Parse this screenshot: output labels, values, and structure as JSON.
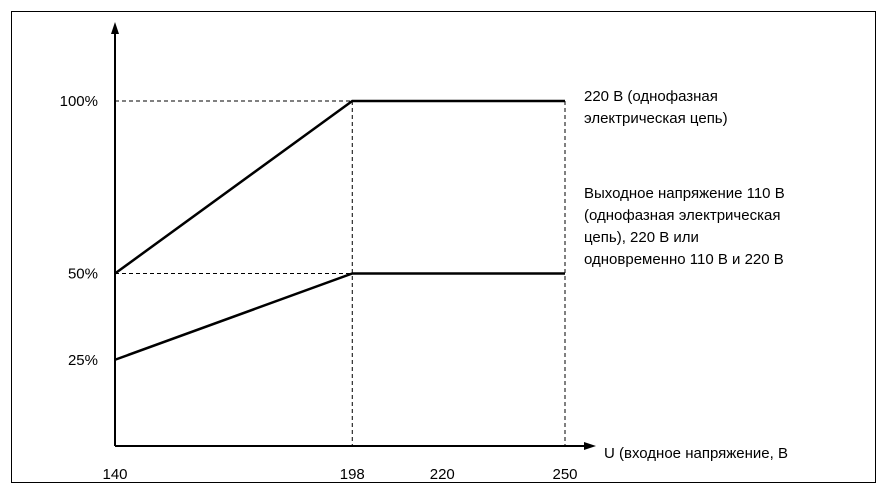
{
  "chart_data": {
    "type": "line",
    "title": "",
    "xlabel": "U (входное напряжение, В",
    "ylabel": "",
    "x_ticks": [
      "140",
      "198",
      "220",
      "250"
    ],
    "y_ticks": [
      "100%",
      "50%",
      "25%"
    ],
    "xlim": [
      140,
      250
    ],
    "ylim": [
      0,
      110
    ],
    "grid": "dashed reference lines",
    "series": [
      {
        "x": [
          140,
          198,
          250
        ],
        "y": [
          50,
          100,
          100
        ],
        "label_lines": [
          "220 В (однофазная",
          "электрическая цепь)"
        ]
      },
      {
        "x": [
          140,
          198,
          250
        ],
        "y": [
          25,
          50,
          50
        ],
        "label_lines": [
          "Выходное напряжение 110 В",
          "(однофазная электрическая",
          "цепь), 220 В или",
          "одновременно 110 В и 220 В"
        ]
      }
    ],
    "colors": {
      "line": "#000000",
      "axis": "#000000",
      "grid": "#000000"
    }
  }
}
